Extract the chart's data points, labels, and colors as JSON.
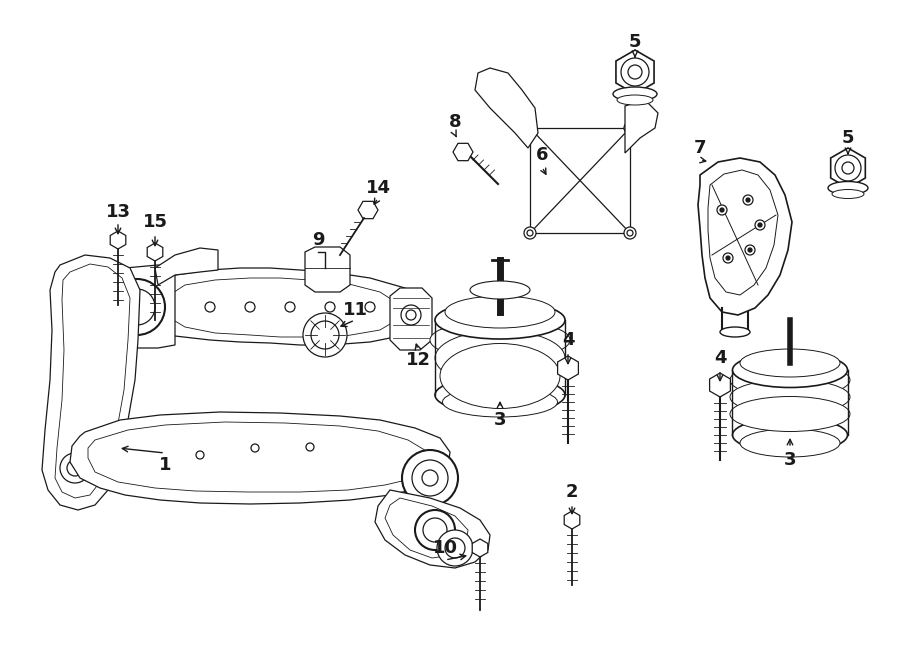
{
  "bg_color": "#ffffff",
  "line_color": "#1a1a1a",
  "fig_width": 9.0,
  "fig_height": 6.61,
  "dpi": 100,
  "lw": 0.9
}
